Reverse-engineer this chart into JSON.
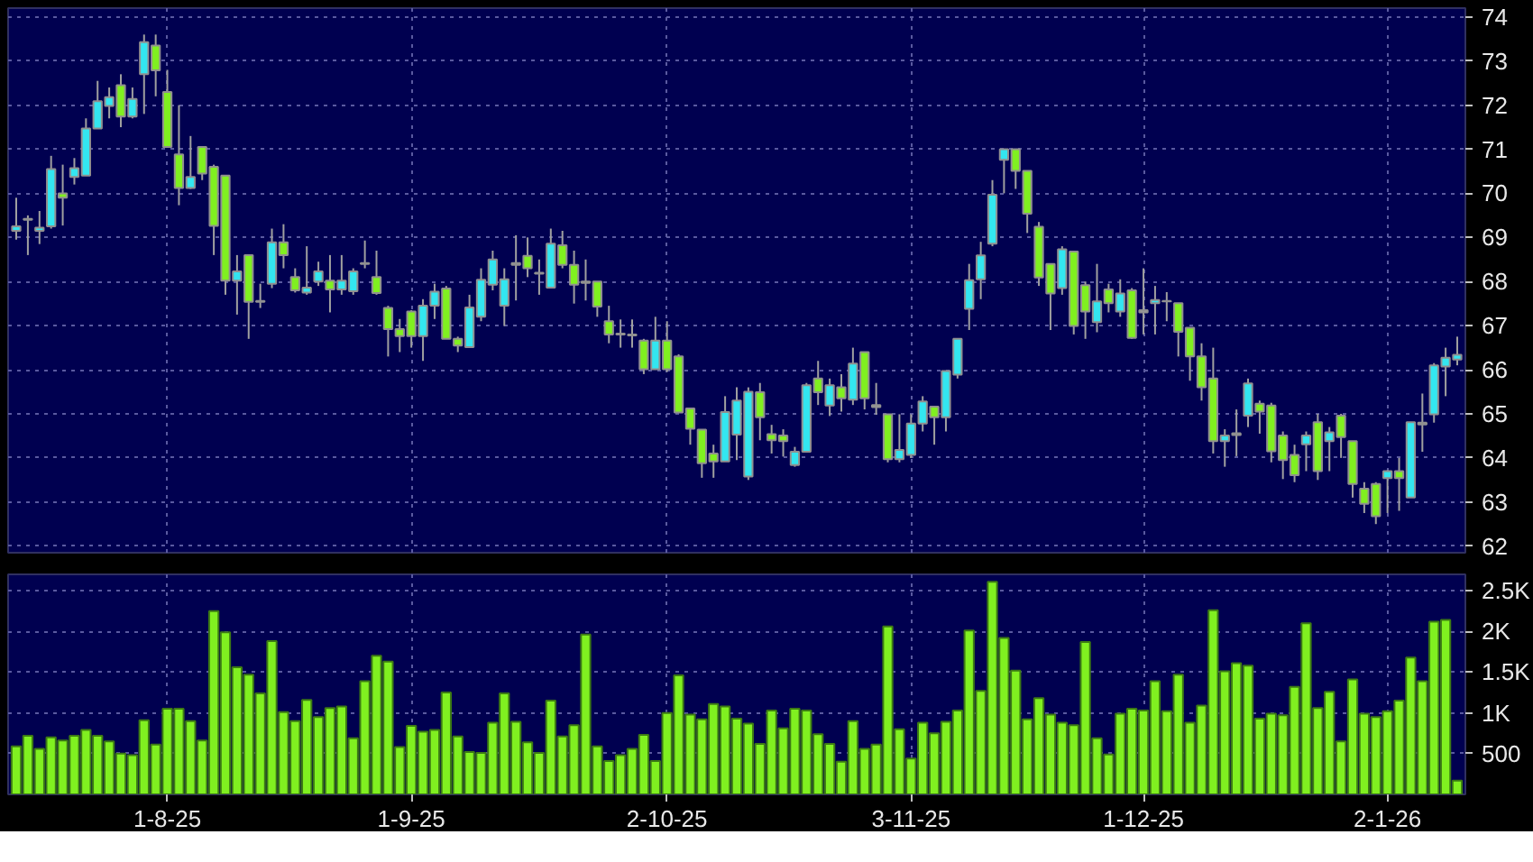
{
  "chart_data": [
    {
      "type": "candlestick",
      "tick_labels": "y",
      "grid": true,
      "categories": [
        null,
        null,
        null,
        null,
        null,
        null,
        null,
        null,
        null,
        null,
        null,
        null,
        null,
        null,
        null,
        null,
        null,
        null,
        null,
        null,
        null,
        null,
        null,
        null,
        null,
        null,
        null,
        null,
        null,
        null,
        null,
        null,
        null,
        null,
        null,
        null,
        null,
        null,
        null,
        null,
        null,
        null,
        null,
        null,
        null,
        null,
        null,
        null,
        null,
        null,
        null,
        null,
        null,
        null,
        null,
        null,
        null,
        null,
        null,
        null,
        null,
        null,
        null,
        null,
        null,
        null,
        null,
        null,
        null,
        null,
        null,
        null,
        null,
        null,
        null,
        null,
        null,
        null,
        null,
        null,
        null,
        null,
        null,
        null,
        null,
        null,
        null,
        null,
        null,
        null,
        null,
        null,
        null,
        null,
        null,
        null,
        null,
        null,
        null,
        null,
        null,
        null,
        null,
        null,
        null,
        null,
        null,
        null,
        null,
        null,
        null,
        null,
        null,
        null,
        null,
        null,
        null,
        null,
        null,
        null,
        null,
        null,
        null,
        null,
        null
      ],
      "ylim": [
        61.85,
        74.2
      ],
      "yticks": [
        62,
        63,
        64,
        65,
        66,
        67,
        68,
        69,
        70,
        71,
        72,
        73,
        74
      ],
      "ohlc": [
        [
          69.15,
          69.9,
          68.95,
          69.25
        ],
        [
          69.42,
          69.5,
          68.6,
          69.4
        ],
        [
          69.15,
          69.6,
          68.85,
          69.22
        ],
        [
          69.25,
          70.85,
          69.2,
          70.55
        ],
        [
          70.0,
          70.65,
          69.27,
          69.9
        ],
        [
          70.37,
          70.8,
          70.2,
          70.57
        ],
        [
          70.4,
          71.7,
          70.4,
          71.47
        ],
        [
          71.47,
          72.55,
          71.47,
          72.09
        ],
        [
          71.98,
          72.4,
          71.7,
          72.18
        ],
        [
          72.45,
          72.7,
          71.5,
          71.74
        ],
        [
          71.74,
          72.4,
          71.7,
          72.14
        ],
        [
          72.7,
          73.6,
          71.8,
          73.43
        ],
        [
          73.35,
          73.6,
          72.2,
          72.79
        ],
        [
          72.3,
          72.8,
          71.05,
          71.05
        ],
        [
          70.88,
          72.0,
          69.73,
          70.12
        ],
        [
          70.12,
          71.3,
          70.1,
          70.37
        ],
        [
          71.05,
          71.05,
          70.3,
          70.45
        ],
        [
          70.6,
          70.65,
          68.6,
          69.26
        ],
        [
          70.4,
          70.4,
          67.7,
          68.02
        ],
        [
          68.02,
          68.6,
          67.25,
          68.23
        ],
        [
          68.6,
          68.6,
          66.7,
          67.54
        ],
        [
          67.56,
          67.95,
          67.4,
          67.54
        ],
        [
          67.95,
          69.2,
          67.85,
          68.89
        ],
        [
          68.89,
          69.3,
          68.3,
          68.6
        ],
        [
          68.1,
          68.3,
          67.75,
          67.8
        ],
        [
          67.75,
          68.8,
          67.7,
          67.86
        ],
        [
          68.0,
          68.45,
          67.9,
          68.23
        ],
        [
          68.02,
          68.6,
          67.3,
          67.82
        ],
        [
          67.82,
          68.6,
          67.7,
          68.02
        ],
        [
          67.78,
          68.3,
          67.7,
          68.23
        ],
        [
          68.42,
          68.93,
          68.3,
          68.4
        ],
        [
          68.1,
          68.7,
          67.7,
          67.74
        ],
        [
          67.4,
          67.45,
          66.3,
          66.92
        ],
        [
          66.92,
          67.15,
          66.4,
          66.76
        ],
        [
          67.32,
          67.35,
          66.5,
          66.76
        ],
        [
          66.76,
          67.6,
          66.2,
          67.45
        ],
        [
          67.45,
          67.95,
          67.15,
          67.77
        ],
        [
          67.84,
          67.9,
          66.7,
          66.7
        ],
        [
          66.7,
          66.75,
          66.4,
          66.55
        ],
        [
          66.51,
          67.7,
          66.5,
          67.41
        ],
        [
          67.2,
          68.3,
          67.1,
          68.04
        ],
        [
          67.93,
          68.7,
          67.8,
          68.5
        ],
        [
          67.45,
          68.3,
          66.99,
          68.05
        ],
        [
          68.42,
          69.05,
          67.57,
          68.38
        ],
        [
          68.58,
          69.0,
          68.1,
          68.3
        ],
        [
          68.2,
          68.5,
          67.7,
          68.18
        ],
        [
          67.86,
          69.2,
          67.86,
          68.86
        ],
        [
          68.82,
          69.15,
          68.3,
          68.38
        ],
        [
          68.38,
          68.7,
          67.5,
          67.93
        ],
        [
          68.0,
          68.5,
          67.57,
          67.97
        ],
        [
          68.0,
          68.0,
          67.2,
          67.43
        ],
        [
          67.1,
          67.45,
          66.6,
          66.8
        ],
        [
          66.82,
          67.14,
          66.5,
          66.8
        ],
        [
          66.8,
          67.14,
          66.5,
          66.78
        ],
        [
          66.66,
          66.7,
          65.9,
          66.01
        ],
        [
          66.01,
          67.2,
          66.0,
          66.66
        ],
        [
          66.66,
          67.1,
          65.95,
          66.01
        ],
        [
          66.3,
          66.35,
          65.03,
          65.03
        ],
        [
          65.12,
          65.12,
          64.3,
          64.66
        ],
        [
          64.64,
          64.64,
          63.55,
          63.88
        ],
        [
          64.1,
          64.3,
          63.55,
          63.92
        ],
        [
          63.92,
          65.4,
          63.92,
          65.04
        ],
        [
          64.53,
          65.6,
          63.95,
          65.3
        ],
        [
          63.58,
          65.6,
          63.5,
          65.5
        ],
        [
          65.49,
          65.7,
          64.4,
          64.92
        ],
        [
          64.54,
          64.75,
          64.1,
          64.4
        ],
        [
          64.51,
          64.65,
          64.03,
          64.38
        ],
        [
          63.84,
          64.25,
          63.8,
          64.14
        ],
        [
          64.14,
          65.7,
          64.14,
          65.65
        ],
        [
          65.8,
          66.2,
          65.2,
          65.49
        ],
        [
          65.19,
          65.8,
          64.95,
          65.65
        ],
        [
          65.6,
          65.9,
          65.05,
          65.35
        ],
        [
          65.32,
          66.5,
          65.2,
          66.14
        ],
        [
          66.4,
          66.4,
          65.1,
          65.35
        ],
        [
          65.2,
          65.7,
          64.98,
          65.15
        ],
        [
          64.99,
          65.0,
          63.9,
          63.97
        ],
        [
          63.97,
          64.99,
          63.9,
          64.18
        ],
        [
          64.07,
          64.99,
          64.0,
          64.78
        ],
        [
          64.78,
          65.4,
          64.6,
          65.28
        ],
        [
          65.16,
          65.16,
          64.3,
          64.92
        ],
        [
          64.92,
          65.97,
          64.6,
          65.97
        ],
        [
          65.89,
          66.7,
          65.8,
          66.7
        ],
        [
          67.38,
          68.4,
          66.9,
          68.03
        ],
        [
          68.05,
          68.9,
          67.6,
          68.59
        ],
        [
          68.86,
          70.3,
          68.8,
          69.97
        ],
        [
          70.76,
          71.0,
          70.0,
          71.0
        ],
        [
          71.0,
          71.0,
          70.1,
          70.51
        ],
        [
          70.51,
          70.51,
          69.1,
          69.54
        ],
        [
          69.24,
          69.35,
          67.9,
          68.09
        ],
        [
          68.4,
          68.4,
          66.9,
          67.73
        ],
        [
          67.85,
          68.8,
          67.7,
          68.73
        ],
        [
          68.68,
          68.68,
          66.8,
          66.99
        ],
        [
          67.92,
          68.0,
          66.7,
          67.32
        ],
        [
          67.08,
          68.4,
          66.85,
          67.55
        ],
        [
          67.82,
          67.95,
          67.3,
          67.51
        ],
        [
          67.32,
          68.05,
          67.2,
          67.73
        ],
        [
          67.8,
          67.85,
          66.7,
          66.72
        ],
        [
          67.35,
          68.3,
          66.8,
          67.3
        ],
        [
          67.51,
          67.9,
          66.8,
          67.58
        ],
        [
          67.56,
          67.76,
          67.1,
          67.55
        ],
        [
          67.51,
          67.51,
          66.3,
          66.86
        ],
        [
          66.95,
          66.95,
          65.75,
          66.3
        ],
        [
          66.3,
          66.6,
          65.3,
          65.6
        ],
        [
          65.8,
          66.5,
          64.1,
          64.38
        ],
        [
          64.38,
          64.65,
          63.8,
          64.51
        ],
        [
          64.52,
          65.1,
          64.04,
          64.56
        ],
        [
          64.96,
          65.8,
          64.7,
          65.69
        ],
        [
          65.23,
          65.3,
          64.55,
          65.05
        ],
        [
          65.19,
          65.25,
          63.9,
          64.15
        ],
        [
          64.51,
          64.6,
          63.52,
          63.95
        ],
        [
          64.07,
          64.3,
          63.45,
          63.61
        ],
        [
          64.31,
          64.6,
          63.7,
          64.51
        ],
        [
          64.81,
          65.0,
          63.5,
          63.7
        ],
        [
          64.38,
          64.7,
          63.7,
          64.58
        ],
        [
          64.96,
          65.0,
          64.0,
          64.47
        ],
        [
          64.38,
          64.38,
          63.1,
          63.41
        ],
        [
          63.3,
          63.45,
          62.75,
          62.96
        ],
        [
          63.41,
          63.45,
          62.5,
          62.68
        ],
        [
          63.54,
          63.72,
          62.75,
          63.7
        ],
        [
          63.7,
          64.0,
          62.8,
          63.54
        ],
        [
          63.1,
          64.81,
          63.1,
          64.81
        ],
        [
          64.76,
          65.46,
          64.14,
          64.8
        ],
        [
          64.99,
          66.15,
          64.8,
          66.1
        ],
        [
          66.07,
          66.5,
          65.4,
          66.27
        ],
        [
          66.23,
          66.75,
          66.1,
          66.34
        ]
      ],
      "colors": [
        "#33e6f0",
        "#a0a0a0",
        "#33e6f0",
        "#33e6f0",
        "#80f020",
        "#33e6f0",
        "#33e6f0",
        "#33e6f0",
        "#33e6f0",
        "#80f020",
        "#33e6f0",
        "#33e6f0",
        "#80f020",
        "#80f020",
        "#80f020",
        "#33e6f0",
        "#80f020",
        "#80f020",
        "#80f020",
        "#33e6f0",
        "#80f020",
        "#a0a0a0",
        "#33e6f0",
        "#80f020",
        "#80f020",
        "#33e6f0",
        "#33e6f0",
        "#80f020",
        "#33e6f0",
        "#33e6f0",
        "#a0a0a0",
        "#80f020",
        "#80f020",
        "#80f020",
        "#80f020",
        "#33e6f0",
        "#33e6f0",
        "#80f020",
        "#80f020",
        "#33e6f0",
        "#33e6f0",
        "#33e6f0",
        "#33e6f0",
        "#a0a0a0",
        "#80f020",
        "#a0a0a0",
        "#33e6f0",
        "#80f020",
        "#80f020",
        "#a0a0a0",
        "#80f020",
        "#80f020",
        "#a0a0a0",
        "#a0a0a0",
        "#80f020",
        "#33e6f0",
        "#80f020",
        "#80f020",
        "#80f020",
        "#80f020",
        "#80f020",
        "#33e6f0",
        "#33e6f0",
        "#33e6f0",
        "#80f020",
        "#80f020",
        "#80f020",
        "#33e6f0",
        "#33e6f0",
        "#80f020",
        "#33e6f0",
        "#80f020",
        "#33e6f0",
        "#80f020",
        "#a0a0a0",
        "#80f020",
        "#33e6f0",
        "#33e6f0",
        "#33e6f0",
        "#80f020",
        "#33e6f0",
        "#33e6f0",
        "#33e6f0",
        "#33e6f0",
        "#33e6f0",
        "#33e6f0",
        "#80f020",
        "#80f020",
        "#80f020",
        "#80f020",
        "#33e6f0",
        "#80f020",
        "#80f020",
        "#33e6f0",
        "#80f020",
        "#33e6f0",
        "#80f020",
        "#a0a0a0",
        "#33e6f0",
        "#a0a0a0",
        "#80f020",
        "#80f020",
        "#80f020",
        "#80f020",
        "#33e6f0",
        "#a0a0a0",
        "#33e6f0",
        "#80f020",
        "#80f020",
        "#80f020",
        "#80f020",
        "#33e6f0",
        "#80f020",
        "#33e6f0",
        "#80f020",
        "#80f020",
        "#80f020",
        "#80f020",
        "#33e6f0",
        "#80f020",
        "#33e6f0",
        "#a0a0a0",
        "#33e6f0",
        "#33e6f0",
        "#33e6f0"
      ]
    },
    {
      "type": "bar",
      "grid": true,
      "color": "#80f020",
      "categories": [
        null,
        null,
        null,
        null,
        null,
        null,
        null,
        null,
        null,
        null,
        null,
        null,
        null,
        "1-8-25",
        null,
        null,
        null,
        null,
        null,
        null,
        null,
        null,
        null,
        null,
        null,
        null,
        null,
        null,
        null,
        null,
        null,
        null,
        null,
        null,
        "1-9-25",
        null,
        null,
        null,
        null,
        null,
        null,
        null,
        null,
        null,
        null,
        null,
        null,
        null,
        null,
        null,
        null,
        null,
        null,
        null,
        null,
        null,
        "2-10-25",
        null,
        null,
        null,
        null,
        null,
        null,
        null,
        null,
        null,
        null,
        null,
        null,
        null,
        null,
        null,
        null,
        null,
        null,
        null,
        null,
        "3-11-25",
        null,
        null,
        null,
        null,
        null,
        null,
        null,
        null,
        null,
        null,
        null,
        null,
        null,
        null,
        null,
        null,
        null,
        null,
        null,
        "1-12-25",
        null,
        null,
        null,
        null,
        null,
        null,
        null,
        null,
        null,
        null,
        null,
        null,
        null,
        null,
        null,
        null,
        null,
        null,
        null,
        null,
        "2-1-26",
        null,
        null,
        null,
        null,
        null,
        null
      ],
      "ylim": [
        0,
        2700
      ],
      "yticks": [
        500,
        {
          "value": 1000,
          "label": "1K"
        },
        {
          "value": 1500,
          "label": "1.5K"
        },
        {
          "value": 2000,
          "label": "2K"
        },
        {
          "value": 2500,
          "label": "2.5K"
        }
      ],
      "values": [
        590,
        720,
        560,
        700,
        660,
        720,
        790,
        720,
        650,
        500,
        480,
        910,
        610,
        1050,
        1050,
        900,
        660,
        2250,
        1990,
        1560,
        1470,
        1240,
        1880,
        1010,
        900,
        1160,
        950,
        1060,
        1080,
        690,
        1390,
        1700,
        1630,
        580,
        840,
        770,
        790,
        1250,
        710,
        520,
        510,
        880,
        1240,
        890,
        640,
        510,
        1150,
        710,
        850,
        1960,
        590,
        410,
        480,
        560,
        730,
        410,
        1000,
        1460,
        980,
        920,
        1110,
        1080,
        930,
        870,
        620,
        1030,
        810,
        1050,
        1030,
        740,
        620,
        400,
        900,
        560,
        610,
        2060,
        800,
        440,
        880,
        750,
        890,
        1030,
        2010,
        1270,
        2610,
        1920,
        1520,
        920,
        1180,
        980,
        880,
        850,
        1870,
        690,
        490,
        990,
        1050,
        1030,
        1390,
        1020,
        1470,
        880,
        1090,
        2260,
        1510,
        1610,
        1580,
        930,
        990,
        970,
        1320,
        2100,
        1060,
        1260,
        650,
        1410,
        990,
        950,
        1020,
        1150,
        1680,
        1390,
        2120,
        2140,
        170
      ]
    }
  ]
}
